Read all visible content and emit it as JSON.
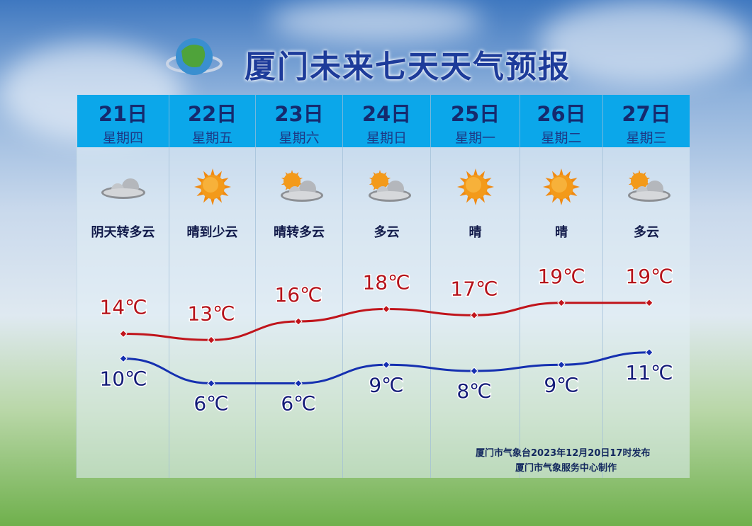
{
  "title": "厦门未来七天天气预报",
  "days": [
    {
      "date": "21日",
      "weekday": "星期四",
      "weather": "阴天转多云",
      "icon": "overcast-cloud-icon",
      "high": "14℃",
      "low": "10℃"
    },
    {
      "date": "22日",
      "weekday": "星期五",
      "weather": "晴到少云",
      "icon": "sun-icon",
      "high": "13℃",
      "low": "6℃"
    },
    {
      "date": "23日",
      "weekday": "星期六",
      "weather": "晴转多云",
      "icon": "partly-cloudy-icon",
      "high": "16℃",
      "low": "6℃"
    },
    {
      "date": "24日",
      "weekday": "星期日",
      "weather": "多云",
      "icon": "partly-cloudy-icon",
      "high": "18℃",
      "low": "9℃"
    },
    {
      "date": "25日",
      "weekday": "星期一",
      "weather": "晴",
      "icon": "sun-icon",
      "high": "17℃",
      "low": "8℃"
    },
    {
      "date": "26日",
      "weekday": "星期二",
      "weather": "晴",
      "icon": "sun-icon",
      "high": "19℃",
      "low": "9℃"
    },
    {
      "date": "27日",
      "weekday": "星期三",
      "weather": "多云",
      "icon": "partly-cloudy-icon",
      "high": "19℃",
      "low": "11℃"
    }
  ],
  "footer": {
    "issued": "厦门市气象台2023年12月20日17时发布",
    "producer": "厦门市气象服务中心制作"
  },
  "colors": {
    "header": "#0ba7ea",
    "high_line": "#c0141b",
    "low_line": "#1530b0",
    "high_text": "#b5121a",
    "low_text": "#141c78"
  },
  "chart_data": {
    "type": "line",
    "categories": [
      "21日",
      "22日",
      "23日",
      "24日",
      "25日",
      "26日",
      "27日"
    ],
    "series": [
      {
        "values": [
          14,
          13,
          16,
          18,
          17,
          19,
          19
        ]
      },
      {
        "values": [
          10,
          6,
          6,
          9,
          8,
          9,
          11
        ]
      }
    ],
    "unit": "℃",
    "grid": false
  }
}
